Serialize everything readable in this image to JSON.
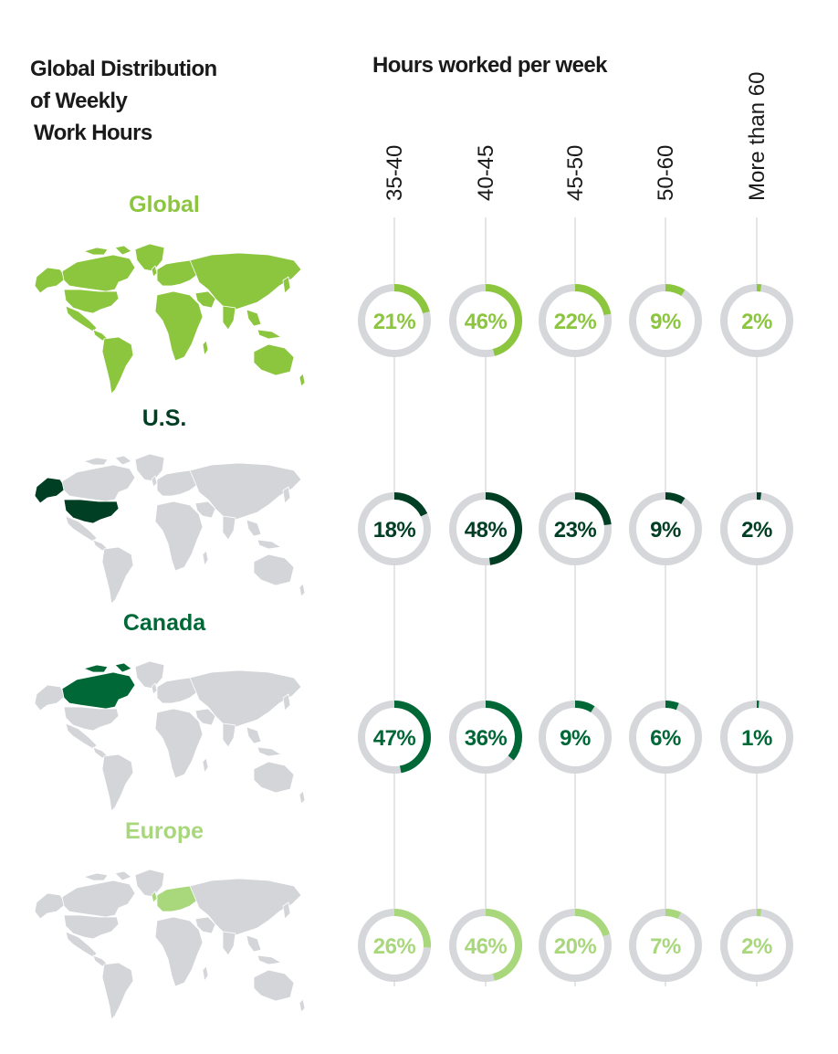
{
  "title_lines": [
    "Global Distribution",
    "of Weekly",
    "Work Hours"
  ],
  "column_header": "Hours worked per week",
  "colors": {
    "track": "#d5d7da",
    "guide_line": "#e4e5e7",
    "map_gray": "#d3d5d8",
    "global": "#8cc63f",
    "us": "#013f24",
    "canada": "#006837",
    "europe": "#a8d77c"
  },
  "icons": {
    "map": "world-map-icon"
  },
  "chart_data": {
    "type": "donut-grid",
    "title": "Global Distribution of Weekly Work Hours",
    "xlabel": "Hours worked per week",
    "unit": "%",
    "categories": [
      "35-40",
      "40-45",
      "45-50",
      "50-60",
      "More than 60"
    ],
    "series": [
      {
        "name": "Global",
        "color": "#8cc63f",
        "values": [
          21,
          46,
          22,
          9,
          2
        ]
      },
      {
        "name": "U.S.",
        "color": "#013f24",
        "values": [
          18,
          48,
          23,
          9,
          2
        ]
      },
      {
        "name": "Canada",
        "color": "#006837",
        "values": [
          47,
          36,
          9,
          6,
          1
        ]
      },
      {
        "name": "Europe",
        "color": "#a8d77c",
        "values": [
          26,
          46,
          20,
          7,
          2
        ]
      }
    ]
  }
}
